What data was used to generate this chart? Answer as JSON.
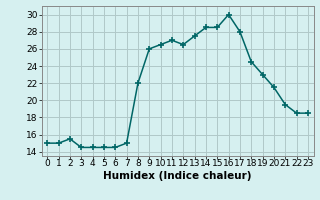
{
  "x": [
    0,
    1,
    2,
    3,
    4,
    5,
    6,
    7,
    8,
    9,
    10,
    11,
    12,
    13,
    14,
    15,
    16,
    17,
    18,
    19,
    20,
    21,
    22,
    23
  ],
  "y": [
    15,
    15,
    15.5,
    14.5,
    14.5,
    14.5,
    14.5,
    15,
    22,
    26,
    26.5,
    27,
    26.5,
    27.5,
    28.5,
    28.5,
    30,
    28,
    24.5,
    23,
    21.5,
    19.5,
    18.5,
    18.5
  ],
  "line_color": "#006666",
  "bg_color": "#d6f0f0",
  "grid_color": "#b0c8c8",
  "xlabel": "Humidex (Indice chaleur)",
  "xlim": [
    -0.5,
    23.5
  ],
  "ylim": [
    13.5,
    31.0
  ],
  "yticks": [
    14,
    16,
    18,
    20,
    22,
    24,
    26,
    28,
    30
  ],
  "xtick_labels": [
    "0",
    "1",
    "2",
    "3",
    "4",
    "5",
    "6",
    "7",
    "8",
    "9",
    "10",
    "11",
    "12",
    "13",
    "14",
    "15",
    "16",
    "17",
    "18",
    "19",
    "20",
    "21",
    "22",
    "23"
  ],
  "label_fontsize": 7.5,
  "tick_fontsize": 6.5,
  "marker": "+",
  "marker_size": 5,
  "line_width": 1.1
}
